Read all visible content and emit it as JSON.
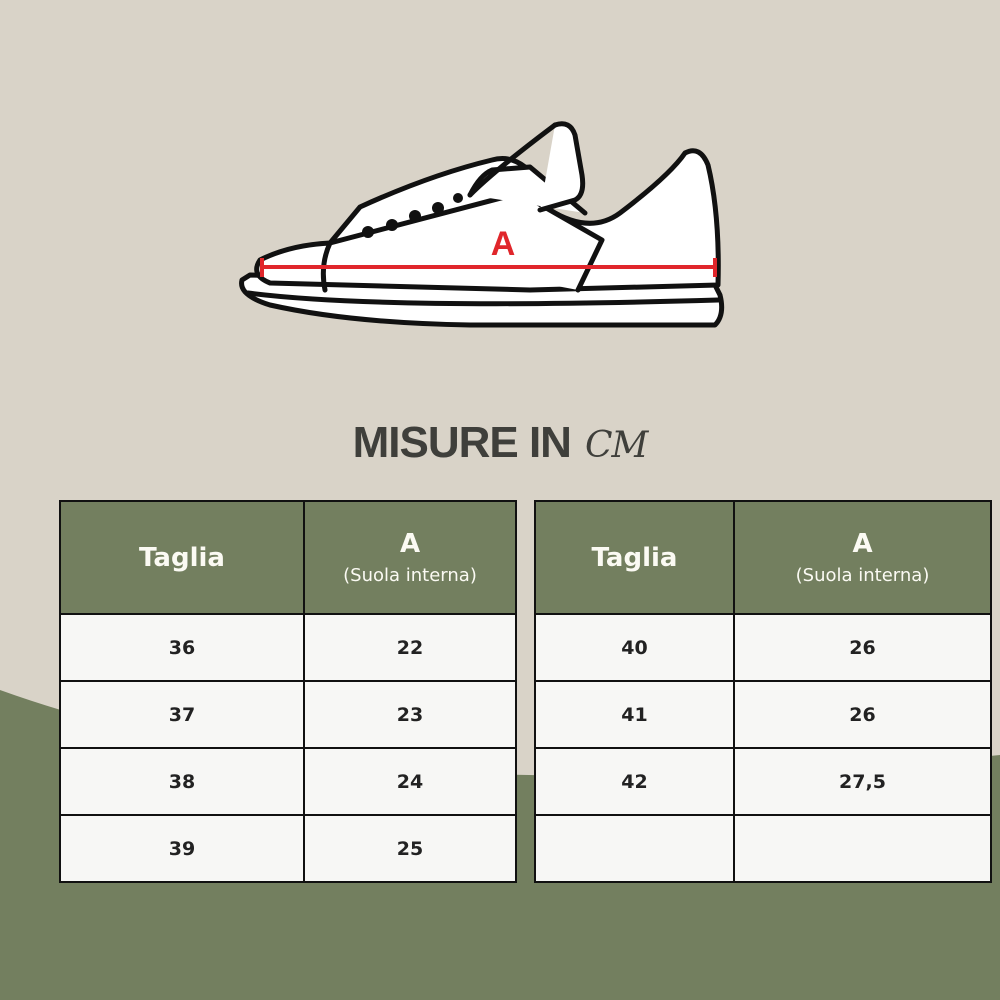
{
  "colors": {
    "background": "#d9d3c8",
    "green": "#737f5f",
    "cell": "#f7f7f5",
    "measure_line": "#e0262b"
  },
  "diagram": {
    "measure_label": "A"
  },
  "title": {
    "main": "MISURE IN",
    "unit": "CM"
  },
  "table": {
    "headers": {
      "size": "Taglia",
      "measure": "A",
      "measure_note": "(Suola interna)"
    },
    "left": [
      {
        "size": "36",
        "a": "22"
      },
      {
        "size": "37",
        "a": "23"
      },
      {
        "size": "38",
        "a": "24"
      },
      {
        "size": "39",
        "a": "25"
      }
    ],
    "right": [
      {
        "size": "40",
        "a": "26"
      },
      {
        "size": "41",
        "a": "26"
      },
      {
        "size": "42",
        "a": "27,5"
      },
      {
        "size": "",
        "a": ""
      }
    ]
  }
}
